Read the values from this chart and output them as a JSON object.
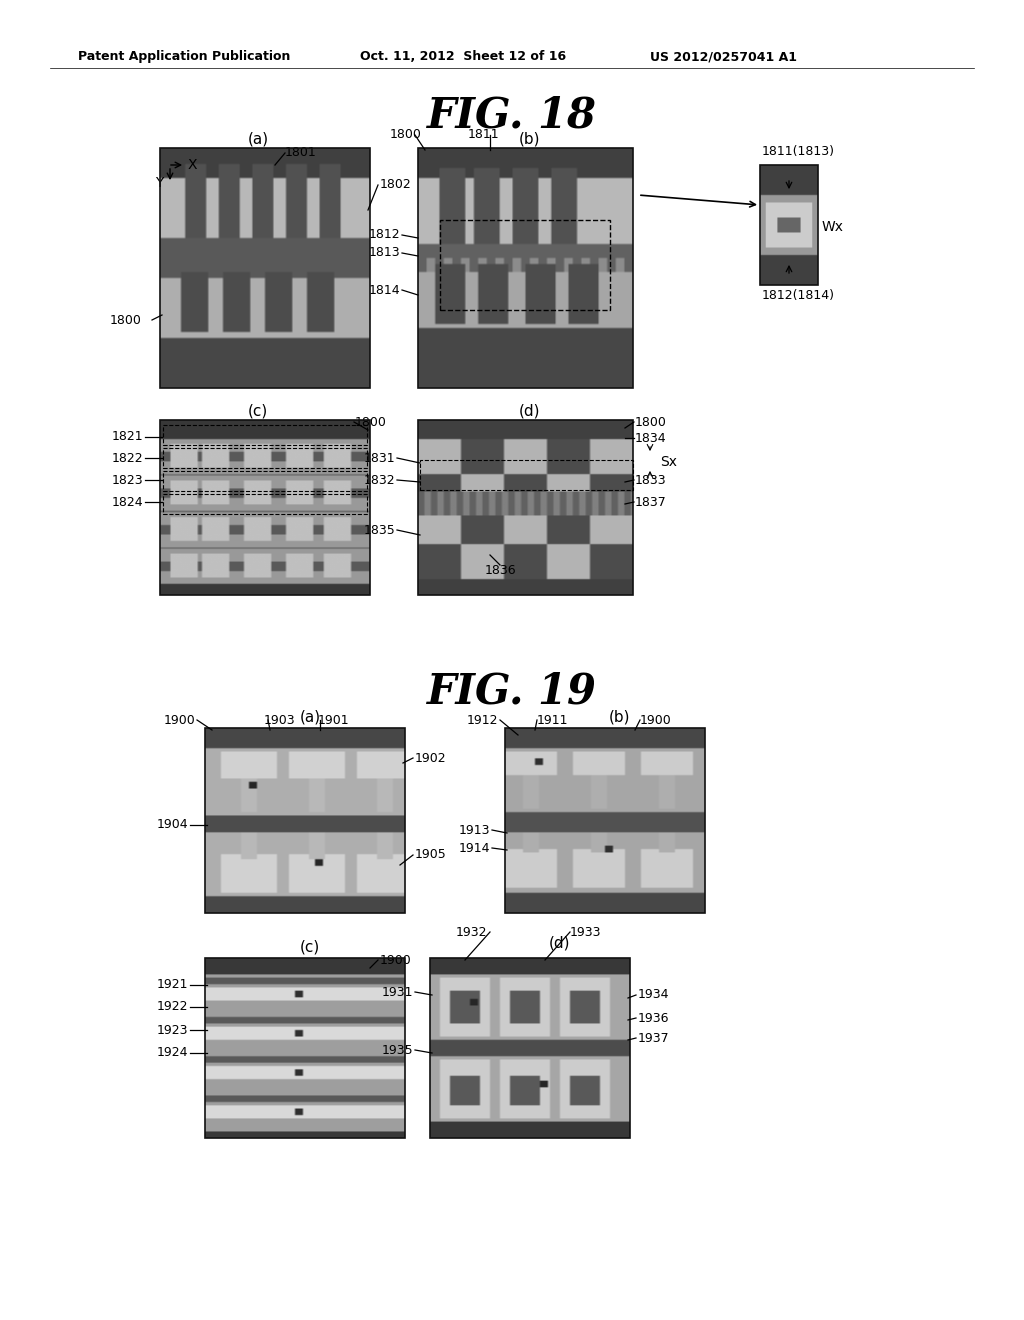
{
  "bg_color": "#ffffff",
  "header_text": "Patent Application Publication",
  "header_date": "Oct. 11, 2012  Sheet 12 of 16",
  "header_patent": "US 2012/0257041 A1",
  "fig18_title": "FIG. 18",
  "fig19_title": "FIG. 19"
}
